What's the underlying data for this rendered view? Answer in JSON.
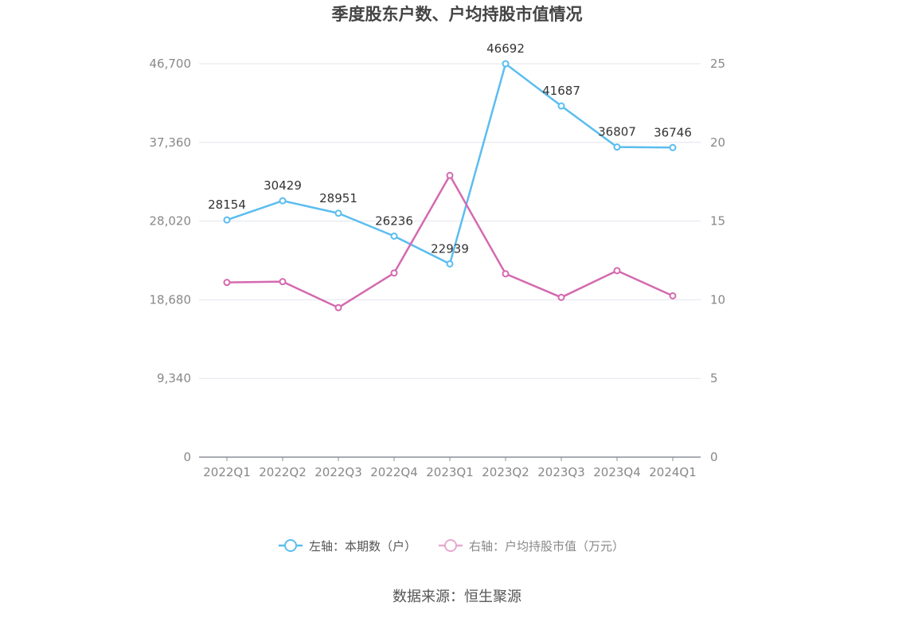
{
  "chart_data": {
    "type": "line",
    "title": "季度股东户数、户均持股市值情况",
    "categories": [
      "2022Q1",
      "2022Q2",
      "2022Q3",
      "2022Q4",
      "2023Q1",
      "2023Q2",
      "2023Q3",
      "2023Q4",
      "2024Q1"
    ],
    "left_axis": {
      "ticks": [
        "0",
        "9,340",
        "18,680",
        "28,020",
        "37,360",
        "46,700"
      ],
      "range": [
        0,
        46700
      ]
    },
    "right_axis": {
      "ticks": [
        "0",
        "5",
        "10",
        "15",
        "20",
        "25"
      ],
      "range": [
        0,
        25
      ]
    },
    "grid": true,
    "legend_position": "bottom",
    "series": [
      {
        "name": "左轴：本期数（户）",
        "axis": "left",
        "color": "#5bbdf0",
        "values": [
          28154,
          30429,
          28951,
          26236,
          22939,
          46692,
          41687,
          36807,
          36746
        ],
        "labels": [
          "28154",
          "30429",
          "28951",
          "26236",
          "22939",
          "46692",
          "41687",
          "36807",
          "36746"
        ]
      },
      {
        "name": "右轴：户均持股市值（万元）",
        "axis": "right",
        "color": "#d46aaf",
        "values": [
          11.1,
          11.15,
          9.5,
          11.7,
          17.9,
          11.65,
          10.15,
          11.85,
          10.25
        ]
      }
    ]
  },
  "source_text": "数据来源：恒生聚源"
}
